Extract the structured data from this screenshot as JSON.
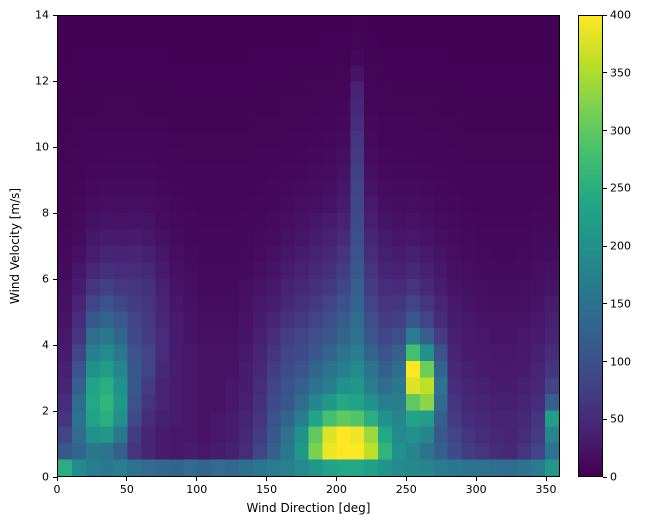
{
  "figure": {
    "background": "#ffffff"
  },
  "chart_data": {
    "type": "heatmap",
    "title": "",
    "xlabel": "Wind Direction [deg]",
    "ylabel": "Wind Velocity [m/s]",
    "x_range": [
      0,
      360
    ],
    "y_range": [
      0,
      14
    ],
    "x_ticks": [
      0,
      50,
      100,
      150,
      200,
      250,
      300,
      350
    ],
    "y_ticks": [
      0,
      2,
      4,
      6,
      8,
      10,
      12,
      14
    ],
    "x_bin_width_deg": 10,
    "y_bin_width_ms": 0.5,
    "colorbar": {
      "min": 0,
      "max": 400,
      "ticks": [
        0,
        50,
        100,
        150,
        200,
        250,
        300,
        350,
        400
      ]
    },
    "colormap": "viridis",
    "colormap_stops": [
      [
        0.0,
        "#440154"
      ],
      [
        0.1,
        "#482475"
      ],
      [
        0.2,
        "#414487"
      ],
      [
        0.3,
        "#355f8d"
      ],
      [
        0.4,
        "#2a788e"
      ],
      [
        0.5,
        "#21918c"
      ],
      [
        0.6,
        "#22a884"
      ],
      [
        0.7,
        "#44bf70"
      ],
      [
        0.8,
        "#7ad151"
      ],
      [
        0.9,
        "#bddf26"
      ],
      [
        1.0,
        "#fde725"
      ]
    ],
    "matrix_layout": "rows bottom-to-top (velocity 0 to 14 m/s, 0.5 m/s bins); columns left-to-right (direction 0 to 360 deg, 10 deg bins); values are counts",
    "matrix": [
      [
        250,
        190,
        170,
        160,
        170,
        150,
        140,
        135,
        130,
        140,
        130,
        140,
        135,
        145,
        155,
        165,
        175,
        190,
        210,
        230,
        240,
        240,
        225,
        205,
        190,
        185,
        180,
        170,
        160,
        150,
        150,
        145,
        140,
        150,
        165,
        210
      ],
      [
        110,
        130,
        160,
        150,
        120,
        60,
        40,
        30,
        25,
        30,
        25,
        30,
        35,
        50,
        80,
        120,
        160,
        210,
        320,
        390,
        400,
        400,
        360,
        260,
        200,
        180,
        150,
        120,
        90,
        70,
        60,
        50,
        45,
        60,
        80,
        150
      ],
      [
        80,
        140,
        200,
        210,
        160,
        70,
        40,
        30,
        25,
        25,
        20,
        25,
        30,
        45,
        70,
        110,
        150,
        200,
        300,
        380,
        400,
        390,
        340,
        240,
        190,
        200,
        180,
        110,
        80,
        60,
        50,
        45,
        40,
        50,
        70,
        180
      ],
      [
        60,
        150,
        230,
        250,
        200,
        90,
        50,
        35,
        30,
        25,
        20,
        25,
        30,
        40,
        60,
        100,
        130,
        170,
        230,
        280,
        300,
        290,
        250,
        200,
        180,
        230,
        220,
        120,
        70,
        50,
        45,
        40,
        40,
        45,
        60,
        220
      ],
      [
        50,
        140,
        240,
        260,
        210,
        100,
        60,
        40,
        30,
        25,
        20,
        20,
        25,
        35,
        55,
        90,
        110,
        140,
        180,
        210,
        240,
        230,
        200,
        170,
        170,
        300,
        330,
        140,
        60,
        45,
        40,
        35,
        35,
        40,
        50,
        120
      ],
      [
        40,
        120,
        230,
        250,
        200,
        110,
        70,
        40,
        30,
        25,
        20,
        20,
        25,
        30,
        50,
        80,
        100,
        120,
        150,
        170,
        200,
        210,
        170,
        140,
        160,
        380,
        360,
        150,
        50,
        40,
        35,
        30,
        30,
        35,
        45,
        80
      ],
      [
        35,
        100,
        200,
        220,
        180,
        110,
        80,
        45,
        30,
        25,
        20,
        20,
        20,
        30,
        45,
        70,
        90,
        100,
        130,
        150,
        170,
        190,
        150,
        120,
        140,
        400,
        310,
        130,
        45,
        35,
        30,
        28,
        28,
        30,
        40,
        60
      ],
      [
        30,
        80,
        170,
        190,
        160,
        100,
        80,
        50,
        30,
        25,
        20,
        20,
        20,
        25,
        40,
        60,
        80,
        90,
        110,
        130,
        150,
        170,
        130,
        100,
        120,
        280,
        200,
        100,
        40,
        30,
        28,
        25,
        25,
        28,
        35,
        50
      ],
      [
        25,
        60,
        140,
        160,
        130,
        90,
        70,
        50,
        30,
        22,
        18,
        18,
        18,
        22,
        35,
        50,
        70,
        80,
        95,
        110,
        130,
        150,
        110,
        85,
        95,
        170,
        120,
        70,
        35,
        28,
        25,
        22,
        22,
        25,
        30,
        40
      ],
      [
        20,
        50,
        110,
        130,
        110,
        80,
        65,
        45,
        28,
        20,
        16,
        16,
        16,
        20,
        30,
        40,
        55,
        65,
        80,
        95,
        115,
        140,
        95,
        70,
        75,
        110,
        80,
        50,
        30,
        25,
        22,
        20,
        20,
        22,
        26,
        35
      ],
      [
        18,
        40,
        80,
        100,
        85,
        70,
        60,
        40,
        25,
        18,
        14,
        14,
        14,
        18,
        25,
        32,
        45,
        55,
        65,
        80,
        100,
        130,
        80,
        60,
        60,
        80,
        60,
        40,
        25,
        22,
        18,
        16,
        16,
        18,
        22,
        28
      ],
      [
        15,
        30,
        60,
        75,
        65,
        60,
        55,
        35,
        22,
        16,
        12,
        12,
        12,
        15,
        20,
        26,
        36,
        45,
        55,
        65,
        85,
        120,
        70,
        50,
        48,
        60,
        45,
        32,
        22,
        18,
        15,
        14,
        14,
        15,
        18,
        22
      ],
      [
        12,
        24,
        45,
        55,
        50,
        50,
        45,
        30,
        18,
        14,
        10,
        10,
        10,
        12,
        16,
        22,
        30,
        36,
        45,
        55,
        70,
        110,
        60,
        42,
        38,
        45,
        35,
        26,
        18,
        15,
        12,
        11,
        11,
        12,
        15,
        18
      ],
      [
        10,
        18,
        32,
        40,
        38,
        40,
        35,
        24,
        15,
        11,
        9,
        9,
        9,
        10,
        13,
        18,
        24,
        30,
        38,
        45,
        60,
        100,
        50,
        34,
        30,
        35,
        28,
        20,
        15,
        12,
        10,
        9,
        9,
        10,
        12,
        14
      ],
      [
        8,
        14,
        24,
        30,
        28,
        30,
        26,
        18,
        12,
        9,
        8,
        8,
        8,
        9,
        11,
        14,
        19,
        24,
        30,
        36,
        48,
        95,
        42,
        28,
        24,
        26,
        22,
        16,
        12,
        10,
        8,
        8,
        8,
        8,
        10,
        11
      ],
      [
        7,
        11,
        18,
        22,
        20,
        22,
        20,
        14,
        10,
        8,
        7,
        7,
        7,
        8,
        9,
        11,
        15,
        19,
        24,
        28,
        38,
        90,
        34,
        22,
        18,
        20,
        17,
        13,
        10,
        8,
        7,
        7,
        7,
        7,
        8,
        9
      ],
      [
        6,
        9,
        13,
        16,
        15,
        16,
        15,
        11,
        8,
        7,
        6,
        6,
        6,
        7,
        8,
        9,
        12,
        15,
        18,
        22,
        30,
        85,
        28,
        17,
        14,
        15,
        13,
        10,
        8,
        7,
        6,
        6,
        6,
        6,
        7,
        8
      ],
      [
        5,
        7,
        10,
        12,
        11,
        12,
        11,
        9,
        7,
        6,
        5,
        5,
        5,
        6,
        7,
        8,
        10,
        12,
        14,
        17,
        24,
        80,
        22,
        13,
        11,
        12,
        10,
        8,
        7,
        6,
        5,
        5,
        5,
        5,
        6,
        6
      ],
      [
        5,
        6,
        8,
        9,
        9,
        9,
        9,
        7,
        6,
        5,
        5,
        5,
        5,
        5,
        6,
        7,
        8,
        9,
        11,
        13,
        19,
        75,
        17,
        10,
        9,
        9,
        8,
        7,
        6,
        5,
        5,
        5,
        5,
        5,
        5,
        5
      ],
      [
        4,
        5,
        6,
        7,
        7,
        7,
        7,
        6,
        5,
        4,
        4,
        4,
        4,
        4,
        5,
        5,
        6,
        7,
        9,
        10,
        15,
        68,
        13,
        8,
        7,
        7,
        6,
        6,
        5,
        4,
        4,
        4,
        4,
        4,
        4,
        4
      ],
      [
        4,
        4,
        5,
        5,
        5,
        5,
        5,
        5,
        4,
        4,
        4,
        4,
        4,
        4,
        4,
        4,
        5,
        5,
        7,
        8,
        12,
        60,
        10,
        6,
        6,
        6,
        5,
        5,
        4,
        4,
        4,
        4,
        4,
        4,
        4,
        4
      ],
      [
        3,
        4,
        4,
        4,
        4,
        4,
        4,
        4,
        3,
        3,
        3,
        3,
        3,
        3,
        4,
        4,
        4,
        4,
        5,
        6,
        9,
        52,
        8,
        5,
        5,
        5,
        4,
        4,
        4,
        3,
        3,
        3,
        3,
        3,
        3,
        3
      ],
      [
        3,
        3,
        3,
        4,
        4,
        4,
        3,
        3,
        3,
        3,
        3,
        3,
        3,
        3,
        3,
        3,
        4,
        4,
        4,
        5,
        7,
        45,
        6,
        4,
        4,
        4,
        4,
        3,
        3,
        3,
        3,
        3,
        3,
        3,
        3,
        3
      ],
      [
        2,
        3,
        3,
        3,
        3,
        3,
        3,
        3,
        2,
        2,
        2,
        2,
        2,
        2,
        3,
        3,
        3,
        3,
        4,
        4,
        5,
        38,
        5,
        4,
        3,
        3,
        3,
        3,
        3,
        2,
        2,
        2,
        2,
        2,
        2,
        2
      ],
      [
        2,
        2,
        2,
        2,
        2,
        2,
        2,
        2,
        2,
        2,
        2,
        2,
        2,
        2,
        2,
        2,
        2,
        3,
        3,
        3,
        4,
        20,
        4,
        3,
        2,
        2,
        2,
        2,
        2,
        2,
        2,
        2,
        2,
        2,
        2,
        2
      ],
      [
        1,
        2,
        2,
        2,
        2,
        2,
        2,
        2,
        1,
        1,
        1,
        1,
        1,
        1,
        2,
        2,
        2,
        2,
        2,
        2,
        3,
        8,
        3,
        2,
        2,
        2,
        2,
        2,
        1,
        1,
        1,
        1,
        1,
        1,
        1,
        1
      ],
      [
        1,
        1,
        1,
        1,
        1,
        1,
        1,
        1,
        1,
        1,
        1,
        1,
        1,
        1,
        1,
        1,
        1,
        1,
        1,
        2,
        2,
        4,
        2,
        1,
        1,
        1,
        1,
        1,
        1,
        1,
        1,
        1,
        1,
        1,
        1,
        1
      ],
      [
        1,
        1,
        1,
        1,
        1,
        1,
        1,
        1,
        1,
        1,
        1,
        1,
        1,
        1,
        1,
        1,
        1,
        1,
        1,
        1,
        1,
        2,
        1,
        1,
        1,
        1,
        1,
        1,
        1,
        1,
        1,
        1,
        1,
        1,
        1,
        1
      ]
    ]
  }
}
